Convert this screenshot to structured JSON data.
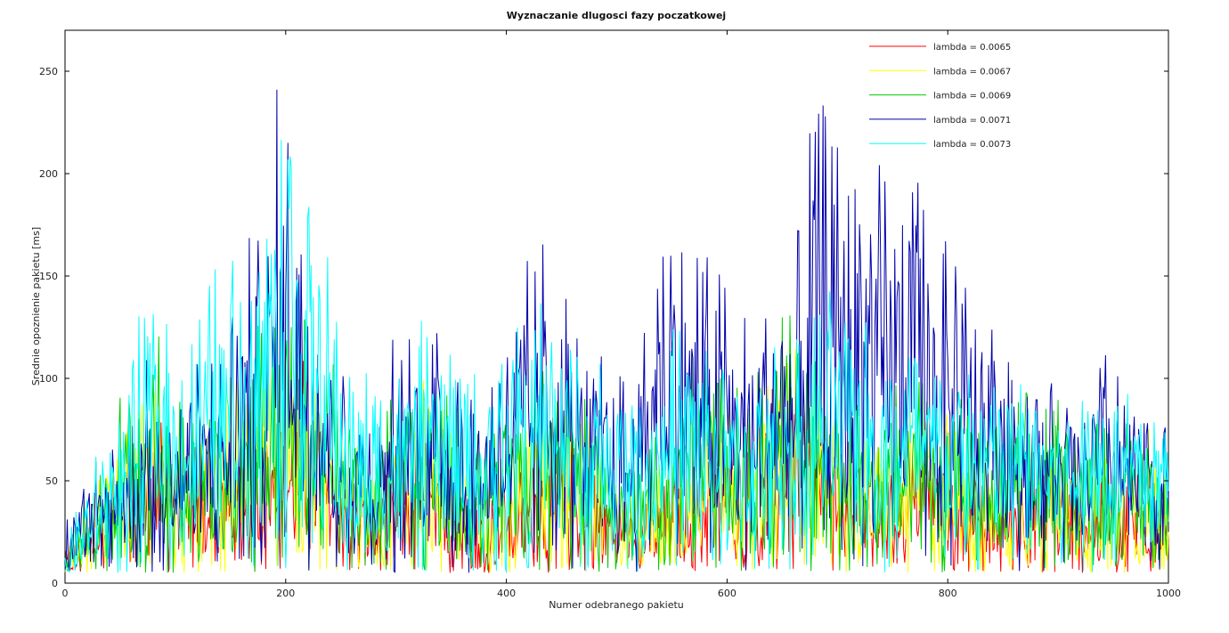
{
  "chart_data": {
    "type": "line",
    "title": "Wyznaczanie dlugosci fazy poczatkowej",
    "xlabel": "Numer odebranego pakietu",
    "ylabel": "Srednie opoznienie pakietu [ms]",
    "xlim": [
      0,
      1000
    ],
    "ylim": [
      0,
      270
    ],
    "xticks": [
      0,
      200,
      400,
      600,
      800,
      1000
    ],
    "yticks": [
      0,
      50,
      100,
      150,
      200,
      250
    ],
    "grid": false,
    "legend_position": "top-right",
    "series": [
      {
        "name": "lambda = 0.0065",
        "color": "#ff0000",
        "x": [
          0,
          20,
          40,
          60,
          80,
          100,
          120,
          140,
          160,
          180,
          200,
          220,
          240,
          260,
          280,
          300,
          320,
          340,
          360,
          380,
          400,
          420,
          440,
          460,
          480,
          500,
          520,
          540,
          560,
          580,
          600,
          620,
          640,
          660,
          680,
          700,
          720,
          740,
          760,
          780,
          800,
          820,
          840,
          860,
          880,
          900,
          920,
          940,
          960,
          980,
          1000
        ],
        "y": [
          8,
          15,
          25,
          30,
          45,
          40,
          35,
          30,
          35,
          40,
          45,
          55,
          40,
          30,
          20,
          30,
          40,
          30,
          25,
          22,
          28,
          30,
          40,
          35,
          30,
          25,
          20,
          25,
          30,
          35,
          40,
          35,
          45,
          55,
          45,
          40,
          35,
          30,
          35,
          40,
          38,
          30,
          25,
          30,
          35,
          30,
          25,
          30,
          28,
          32,
          20
        ]
      },
      {
        "name": "lambda = 0.0067",
        "color": "#ffff00",
        "x": [
          0,
          20,
          40,
          60,
          80,
          100,
          120,
          140,
          160,
          180,
          200,
          220,
          240,
          260,
          280,
          300,
          320,
          340,
          360,
          380,
          400,
          420,
          440,
          460,
          480,
          500,
          520,
          540,
          560,
          580,
          600,
          620,
          640,
          660,
          680,
          700,
          720,
          740,
          760,
          780,
          800,
          820,
          840,
          860,
          880,
          900,
          920,
          940,
          960,
          980,
          1000
        ],
        "y": [
          10,
          20,
          30,
          40,
          50,
          45,
          40,
          45,
          50,
          60,
          75,
          55,
          45,
          35,
          25,
          40,
          50,
          45,
          35,
          30,
          35,
          40,
          55,
          45,
          40,
          30,
          25,
          30,
          40,
          45,
          50,
          45,
          55,
          65,
          50,
          45,
          40,
          35,
          40,
          45,
          42,
          35,
          30,
          35,
          40,
          40,
          35,
          35,
          32,
          40,
          25
        ]
      },
      {
        "name": "lambda = 0.0069",
        "color": "#00cc00",
        "x": [
          0,
          20,
          40,
          60,
          80,
          100,
          120,
          140,
          160,
          180,
          200,
          220,
          240,
          260,
          280,
          300,
          320,
          340,
          360,
          380,
          400,
          420,
          440,
          460,
          480,
          500,
          520,
          540,
          560,
          580,
          600,
          620,
          640,
          660,
          680,
          700,
          720,
          740,
          760,
          780,
          800,
          820,
          840,
          860,
          880,
          900,
          920,
          940,
          960,
          980,
          1000
        ],
        "y": [
          12,
          22,
          35,
          55,
          60,
          50,
          45,
          50,
          60,
          70,
          80,
          65,
          55,
          40,
          35,
          50,
          55,
          50,
          40,
          38,
          45,
          50,
          70,
          55,
          45,
          35,
          30,
          40,
          55,
          60,
          55,
          50,
          60,
          70,
          55,
          50,
          45,
          45,
          50,
          55,
          50,
          45,
          40,
          50,
          45,
          45,
          40,
          40,
          38,
          45,
          30
        ]
      },
      {
        "name": "lambda = 0.0071",
        "color": "#0000aa",
        "x": [
          0,
          20,
          40,
          60,
          80,
          100,
          120,
          140,
          160,
          180,
          200,
          220,
          240,
          260,
          280,
          300,
          320,
          340,
          360,
          380,
          400,
          420,
          440,
          460,
          480,
          500,
          520,
          540,
          560,
          580,
          600,
          620,
          640,
          660,
          680,
          700,
          720,
          740,
          760,
          780,
          800,
          820,
          840,
          860,
          880,
          900,
          920,
          940,
          960,
          980,
          1000
        ],
        "y": [
          15,
          25,
          35,
          45,
          55,
          50,
          55,
          60,
          80,
          90,
          130,
          100,
          70,
          50,
          45,
          60,
          65,
          70,
          55,
          50,
          70,
          75,
          85,
          70,
          60,
          50,
          55,
          100,
          90,
          80,
          75,
          70,
          80,
          75,
          120,
          110,
          115,
          100,
          105,
          95,
          80,
          75,
          65,
          60,
          55,
          50,
          45,
          60,
          50,
          45,
          40
        ]
      },
      {
        "name": "lambda = 0.0073",
        "color": "#00ffff",
        "x": [
          0,
          20,
          40,
          60,
          80,
          100,
          120,
          140,
          160,
          180,
          200,
          220,
          240,
          260,
          280,
          300,
          320,
          340,
          360,
          380,
          400,
          420,
          440,
          460,
          480,
          500,
          520,
          540,
          560,
          580,
          600,
          620,
          640,
          660,
          680,
          700,
          720,
          740,
          760,
          780,
          800,
          820,
          840,
          860,
          880,
          900,
          920,
          940,
          960,
          980,
          1000
        ],
        "y": [
          12,
          25,
          40,
          55,
          75,
          60,
          65,
          80,
          85,
          95,
          140,
          105,
          75,
          55,
          50,
          55,
          60,
          65,
          55,
          50,
          60,
          65,
          75,
          65,
          55,
          50,
          50,
          60,
          65,
          60,
          55,
          55,
          60,
          60,
          70,
          70,
          75,
          70,
          65,
          60,
          60,
          55,
          55,
          55,
          55,
          50,
          50,
          55,
          50,
          50,
          45
        ]
      }
    ]
  }
}
